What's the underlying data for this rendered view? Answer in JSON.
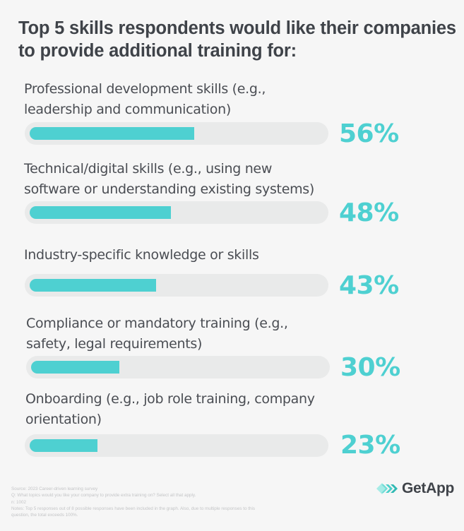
{
  "title": "Top 5 skills respondents would like their companies to provide additional training for:",
  "colors": {
    "background": "#f6f6f6",
    "track": "#e9eaea",
    "fill": "#4ed0d1",
    "percent_text": "#4ed0d1",
    "title_text": "#3f4349"
  },
  "items": [
    {
      "label": "Professional development skills (e.g.,\nleadership and communication)",
      "value": 56,
      "value_label": "56%"
    },
    {
      "label": "Technical/digital skills (e.g., using new\nsoftware or understanding existing systems)",
      "value": 48,
      "value_label": "48%"
    },
    {
      "label": "Industry-specific knowledge or skills",
      "value": 43,
      "value_label": "43%"
    },
    {
      "label": "Compliance or mandatory training (e.g.,\nsafety, legal requirements)",
      "value": 30,
      "value_label": "30%"
    },
    {
      "label": "Onboarding (e.g., job role training, company\norientation)",
      "value": 23,
      "value_label": "23%"
    }
  ],
  "footer": {
    "source": "Source: 2023 Career-driven learning survey",
    "question": "Q: What topics would you like your company to provide extra training on? Select all that apply.",
    "n": "n: 1002",
    "notes_line1": "Notes: Top 5 responses out of 8 possible responses have been included in the graph. Also, due to multiple responses to this",
    "notes_line2": "question, the total exceeds 100%."
  },
  "logo": {
    "icon": "getapp-chevrons-icon",
    "text": "GetApp"
  },
  "chart_data": {
    "type": "bar",
    "orientation": "horizontal",
    "title": "Top 5 skills respondents would like their companies to provide additional training for:",
    "categories": [
      "Professional development skills (e.g., leadership and communication)",
      "Technical/digital skills (e.g., using new software or understanding existing systems)",
      "Industry-specific knowledge or skills",
      "Compliance or mandatory training (e.g., safety, legal requirements)",
      "Onboarding (e.g., job role training, company orientation)"
    ],
    "values": [
      56,
      48,
      43,
      30,
      23
    ],
    "unit": "%",
    "xlabel": "",
    "ylabel": "",
    "xlim": [
      0,
      100
    ],
    "grid": false,
    "legend": null,
    "data_labels": [
      "56%",
      "48%",
      "43%",
      "30%",
      "23%"
    ],
    "annotations": [
      "Source: 2023 Career-driven learning survey",
      "Q: What topics would you like your company to provide extra training on? Select all that apply.",
      "n: 1002",
      "Notes: Top 5 responses out of 8 possible responses have been included in the graph. Also, due to multiple responses to this question, the total exceeds 100%."
    ]
  }
}
